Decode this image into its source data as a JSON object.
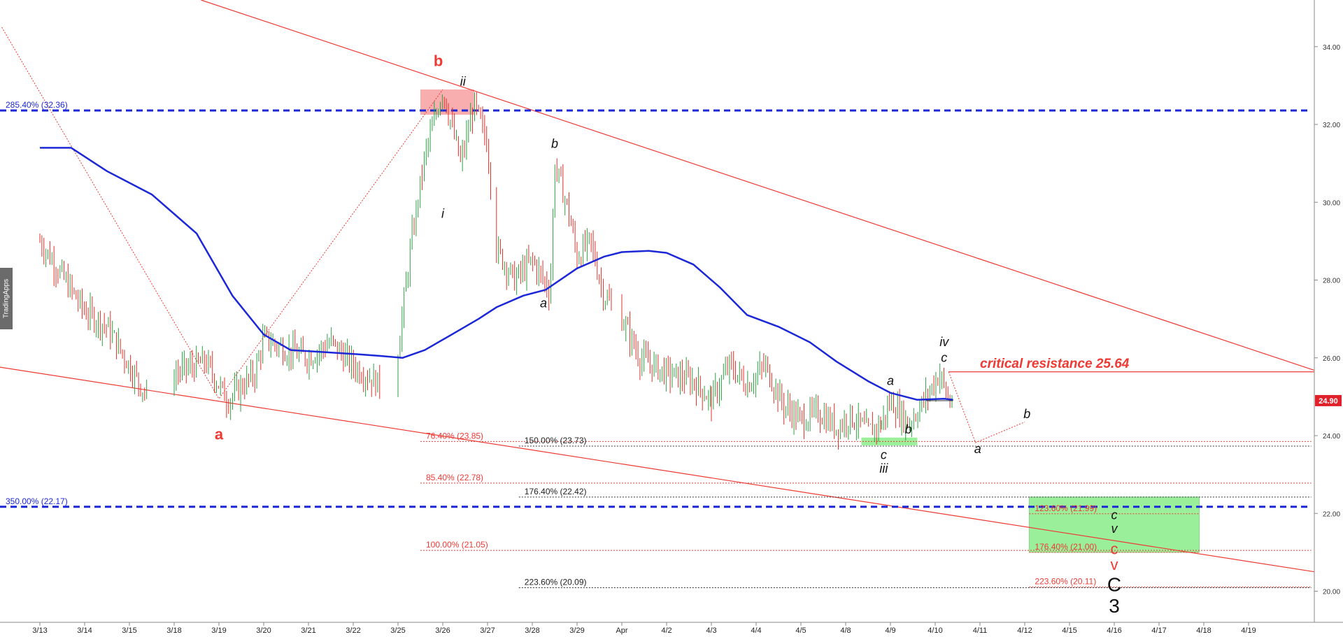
{
  "watermark": "TradingApps",
  "colors": {
    "up": "#2ea043",
    "down": "#e0302a",
    "ma": "#1c28d8",
    "trend": "#ee3a34",
    "fib_blue": "#1c28d8",
    "zone_green": "#90ee90",
    "zone_red": "#f7a0a0"
  },
  "chart_data": {
    "type": "candlestick",
    "x_ticks": [
      "3/13",
      "3/14",
      "3/15",
      "3/18",
      "3/19",
      "3/20",
      "3/21",
      "3/22",
      "3/25",
      "3/26",
      "3/27",
      "3/28",
      "3/29",
      "Apr",
      "4/2",
      "4/3",
      "4/4",
      "4/5",
      "4/8",
      "4/9",
      "4/10",
      "4/11",
      "4/12",
      "4/15",
      "4/16",
      "4/17",
      "4/18",
      "4/19"
    ],
    "y_ticks": [
      "20.00",
      "22.00",
      "24.00",
      "26.00",
      "28.00",
      "30.00",
      "32.00",
      "34.00"
    ],
    "ylim": [
      19.2,
      35.2
    ],
    "last_price": "24.90",
    "price_path": [
      [
        0,
        29.0
      ],
      [
        0.5,
        28.1
      ],
      [
        1,
        27.2
      ],
      [
        1.5,
        26.8
      ],
      [
        2,
        25.8
      ],
      [
        2.4,
        25.0
      ],
      [
        3,
        25.6
      ],
      [
        3.7,
        25.9
      ],
      [
        4.2,
        24.9
      ],
      [
        4.8,
        25.6
      ],
      [
        5,
        26.5
      ],
      [
        5.5,
        26.2
      ],
      [
        6,
        26.0
      ],
      [
        6.5,
        26.4
      ],
      [
        7,
        25.8
      ],
      [
        7.6,
        25.3
      ],
      [
        8,
        26.2
      ],
      [
        8.3,
        29.0
      ],
      [
        8.6,
        31.2
      ],
      [
        9,
        32.9
      ],
      [
        9.4,
        31.0
      ],
      [
        9.7,
        32.5
      ],
      [
        10,
        31.5
      ],
      [
        10.2,
        28.8
      ],
      [
        10.6,
        28.0
      ],
      [
        11,
        28.5
      ],
      [
        11.4,
        27.7
      ],
      [
        11.5,
        31.0
      ],
      [
        11.8,
        29.8
      ],
      [
        12,
        28.6
      ],
      [
        12.3,
        29.0
      ],
      [
        12.6,
        27.6
      ],
      [
        13,
        27.0
      ],
      [
        13.4,
        26.0
      ],
      [
        14,
        25.6
      ],
      [
        14.6,
        25.4
      ],
      [
        15,
        24.9
      ],
      [
        15.4,
        25.8
      ],
      [
        15.8,
        25.3
      ],
      [
        16.2,
        25.8
      ],
      [
        16.6,
        24.8
      ],
      [
        17,
        24.4
      ],
      [
        17.4,
        24.6
      ],
      [
        17.8,
        24.2
      ],
      [
        18.1,
        24.5
      ],
      [
        18.5,
        24.1
      ],
      [
        18.8,
        24.3
      ],
      [
        19.0,
        24.9
      ],
      [
        19.4,
        24.3
      ],
      [
        19.7,
        24.8
      ],
      [
        19.9,
        25.2
      ],
      [
        20.1,
        25.6
      ],
      [
        20.3,
        24.9
      ]
    ],
    "ma_path": [
      [
        0,
        31.4
      ],
      [
        0.7,
        31.4
      ],
      [
        1.5,
        30.8
      ],
      [
        2.5,
        30.2
      ],
      [
        3.5,
        29.2
      ],
      [
        4.3,
        27.6
      ],
      [
        5,
        26.6
      ],
      [
        5.6,
        26.2
      ],
      [
        6.3,
        26.15
      ],
      [
        7,
        26.1
      ],
      [
        7.6,
        26.05
      ],
      [
        8.1,
        26.0
      ],
      [
        8.6,
        26.2
      ],
      [
        9.2,
        26.6
      ],
      [
        9.8,
        27.0
      ],
      [
        10.2,
        27.3
      ],
      [
        10.8,
        27.6
      ],
      [
        11.3,
        27.75
      ],
      [
        12.0,
        28.3
      ],
      [
        12.6,
        28.6
      ],
      [
        13.0,
        28.72
      ],
      [
        13.6,
        28.75
      ],
      [
        14.0,
        28.7
      ],
      [
        14.6,
        28.4
      ],
      [
        15.2,
        27.8
      ],
      [
        15.8,
        27.1
      ],
      [
        16.5,
        26.8
      ],
      [
        17.2,
        26.4
      ],
      [
        17.8,
        25.9
      ],
      [
        18.5,
        25.4
      ],
      [
        19.0,
        25.1
      ],
      [
        19.6,
        24.92
      ],
      [
        20.2,
        24.95
      ],
      [
        20.4,
        24.92
      ]
    ],
    "candle_ranges": [
      [
        0,
        2.4
      ],
      [
        3,
        7.6
      ],
      [
        8,
        10.1
      ],
      [
        10.2,
        12.8
      ],
      [
        13.0,
        15.0
      ],
      [
        15.0,
        18.8
      ],
      [
        18.8,
        20.4
      ]
    ]
  },
  "fib_levels": [
    {
      "label": "285.40% (32.36)",
      "value": 32.36,
      "style": "blue-dash",
      "x1": -0.9,
      "x2": 28.4
    },
    {
      "label": "350.00% (22.17)",
      "value": 22.17,
      "style": "blue-dash",
      "x1": -0.9,
      "x2": 28.4
    },
    {
      "label": "76.40% (23.85)",
      "value": 23.85,
      "style": "red",
      "x1": 8.5,
      "x2": 28.4
    },
    {
      "label": "150.00% (23.73)",
      "value": 23.73,
      "style": "black",
      "x1": 10.7,
      "x2": 28.4
    },
    {
      "label": "85.40% (22.78)",
      "value": 22.78,
      "style": "red",
      "x1": 8.5,
      "x2": 28.4
    },
    {
      "label": "176.40% (22.42)",
      "value": 22.42,
      "style": "black",
      "x1": 10.7,
      "x2": 28.4
    },
    {
      "label": "100.00% (21.05)",
      "value": 21.05,
      "style": "red",
      "x1": 8.5,
      "x2": 28.4
    },
    {
      "label": "223.60% (20.09)",
      "value": 20.09,
      "style": "black",
      "x1": 10.7,
      "x2": 28.4
    },
    {
      "label": "123.60% (21.99)",
      "value": 21.99,
      "style": "red",
      "x1": 22.1,
      "x2": 25.9
    },
    {
      "label": "176.40% (21.00)",
      "value": 21.0,
      "style": "red",
      "x1": 22.1,
      "x2": 25.9
    },
    {
      "label": "223.60% (20.11)",
      "value": 20.11,
      "style": "red",
      "x1": 22.1,
      "x2": 28.4
    }
  ],
  "annotations": {
    "critical": "critical resistance 25.64",
    "critical_value": 25.64
  },
  "wave_labels": [
    {
      "text": "a",
      "x": 4.0,
      "y": 23.9,
      "color": "red",
      "italic": false,
      "bold": true
    },
    {
      "text": "b",
      "x": 8.9,
      "y": 33.5,
      "color": "red",
      "italic": false,
      "bold": true
    },
    {
      "text": "ii",
      "x": 9.45,
      "y": 33.0,
      "color": "black",
      "italic": true,
      "bold": false
    },
    {
      "text": "i",
      "x": 9.0,
      "y": 29.6,
      "color": "black",
      "italic": true,
      "bold": false
    },
    {
      "text": "b",
      "x": 11.5,
      "y": 31.4,
      "color": "black",
      "italic": true,
      "bold": false
    },
    {
      "text": "a",
      "x": 11.25,
      "y": 27.3,
      "color": "black",
      "italic": true,
      "bold": false
    },
    {
      "text": "a",
      "x": 19.0,
      "y": 25.3,
      "color": "black",
      "italic": true,
      "bold": false
    },
    {
      "text": "iv",
      "x": 20.2,
      "y": 26.3,
      "color": "black",
      "italic": true,
      "bold": false
    },
    {
      "text": "c",
      "x": 20.2,
      "y": 25.9,
      "color": "black",
      "italic": true,
      "bold": false
    },
    {
      "text": "b",
      "x": 19.4,
      "y": 24.05,
      "color": "black",
      "italic": true,
      "bold": false
    },
    {
      "text": "c",
      "x": 18.85,
      "y": 23.4,
      "color": "black",
      "italic": true,
      "bold": false
    },
    {
      "text": "iii",
      "x": 18.85,
      "y": 23.05,
      "color": "black",
      "italic": true,
      "bold": false
    },
    {
      "text": "a",
      "x": 20.95,
      "y": 23.55,
      "color": "black",
      "italic": true,
      "bold": false
    },
    {
      "text": "b",
      "x": 22.05,
      "y": 24.45,
      "color": "black",
      "italic": true,
      "bold": false
    },
    {
      "text": "c",
      "x": 24.0,
      "y": 21.85,
      "color": "black",
      "italic": true,
      "bold": false
    },
    {
      "text": "v",
      "x": 24.0,
      "y": 21.5,
      "color": "black",
      "italic": true,
      "bold": false
    },
    {
      "text": "c",
      "x": 24.0,
      "y": 20.95,
      "color": "red",
      "italic": false,
      "bold": false
    },
    {
      "text": "v",
      "x": 24.0,
      "y": 20.55,
      "color": "red",
      "italic": false,
      "bold": false
    },
    {
      "text": "C",
      "x": 24.0,
      "y": 20.0,
      "color": "black",
      "italic": false,
      "bold": false,
      "big": true
    },
    {
      "text": "3",
      "x": 24.0,
      "y": 19.45,
      "color": "black",
      "italic": false,
      "bold": false,
      "big": true
    }
  ]
}
